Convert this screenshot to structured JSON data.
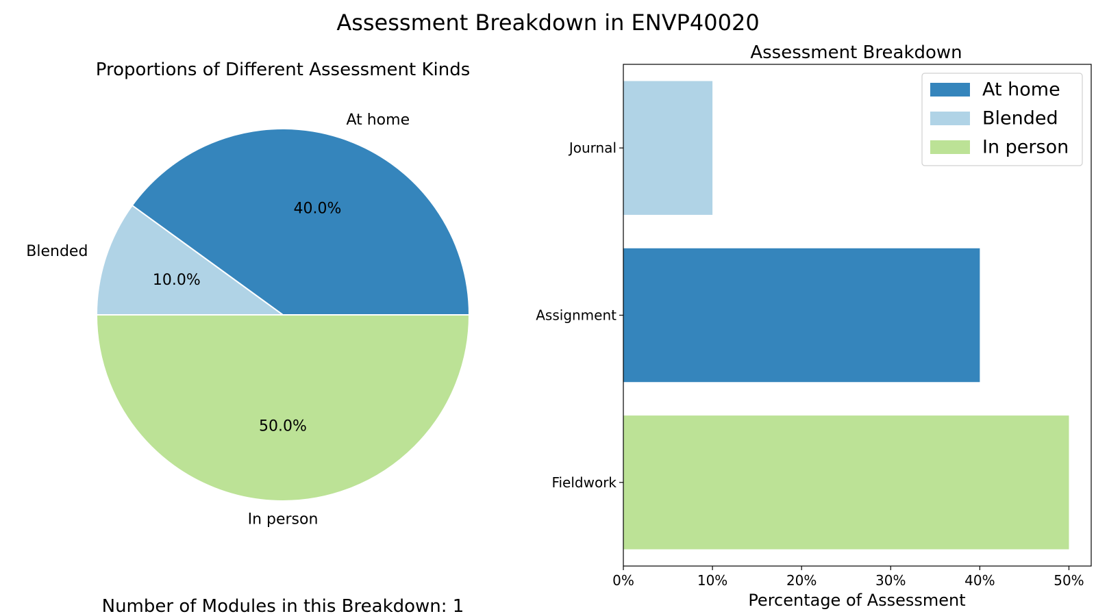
{
  "figure": {
    "title": "Assessment Breakdown in ENVP40020",
    "footnote": "Number of Modules in this Breakdown: 1"
  },
  "colors": {
    "At home": "#3585bc",
    "Blended": "#b0d3e6",
    "In person": "#bce296"
  },
  "chart_data": [
    {
      "type": "pie",
      "title": "Proportions of Different Assessment Kinds",
      "slices": [
        {
          "label": "At home",
          "value": 40.0,
          "pct_label": "40.0%"
        },
        {
          "label": "Blended",
          "value": 10.0,
          "pct_label": "10.0%"
        },
        {
          "label": "In person",
          "value": 50.0,
          "pct_label": "50.0%"
        }
      ]
    },
    {
      "type": "bar",
      "orientation": "horizontal",
      "title": "Assessment Breakdown",
      "xlabel": "Percentage of Assessment",
      "ylabel": "",
      "xlim": [
        0,
        52.5
      ],
      "xticks": [
        {
          "value": 0,
          "label": "0%"
        },
        {
          "value": 10,
          "label": "10%"
        },
        {
          "value": 20,
          "label": "20%"
        },
        {
          "value": 30,
          "label": "30%"
        },
        {
          "value": 40,
          "label": "40%"
        },
        {
          "value": 50,
          "label": "50%"
        }
      ],
      "categories": [
        "Journal",
        "Assignment",
        "Fieldwork"
      ],
      "bars": [
        {
          "category": "Journal",
          "value": 10,
          "series": "Blended"
        },
        {
          "category": "Assignment",
          "value": 40,
          "series": "At home"
        },
        {
          "category": "Fieldwork",
          "value": 50,
          "series": "In person"
        }
      ],
      "legend": {
        "placement": "top-right",
        "entries": [
          "At home",
          "Blended",
          "In person"
        ]
      },
      "grid": false
    }
  ]
}
